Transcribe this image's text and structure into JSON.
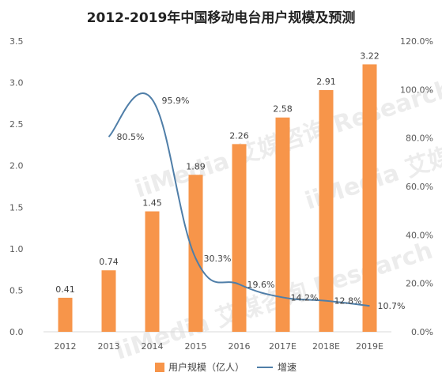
{
  "chart_data": {
    "type": "bar",
    "title": "2012-2019年中国移动电台用户规模及预测",
    "categories": [
      "2012",
      "2013",
      "2014",
      "2015",
      "2016",
      "2017E",
      "2018E",
      "2019E"
    ],
    "series": [
      {
        "name": "用户规模（亿人）",
        "kind": "bar",
        "axis": "left",
        "color": "#f7954a",
        "values": [
          0.41,
          0.74,
          1.45,
          1.89,
          2.26,
          2.58,
          2.91,
          3.22
        ],
        "labels": [
          "0.41",
          "0.74",
          "1.45",
          "1.89",
          "2.26",
          "2.58",
          "2.91",
          "3.22"
        ]
      },
      {
        "name": "增速",
        "kind": "line",
        "axis": "right",
        "color": "#4f7ea8",
        "values": [
          null,
          80.5,
          95.9,
          30.3,
          19.6,
          14.2,
          12.8,
          10.7
        ],
        "labels": [
          null,
          "80.5%",
          "95.9%",
          "30.3%",
          "19.6%",
          "14.2%",
          "12.8%",
          "10.7%"
        ]
      }
    ],
    "y_left": {
      "min": 0,
      "max": 3.5,
      "ticks": [
        "0.0",
        "0.5",
        "1.0",
        "1.5",
        "2.0",
        "2.5",
        "3.0",
        "3.5"
      ]
    },
    "y_right": {
      "min": 0,
      "max": 120,
      "ticks": [
        "0.0%",
        "20.0%",
        "40.0%",
        "60.0%",
        "80.0%",
        "100.0%",
        "120.0%"
      ]
    },
    "grid": false,
    "legend": "bottom-center"
  },
  "watermark": "iiMedia 艾媒咨询 Research"
}
